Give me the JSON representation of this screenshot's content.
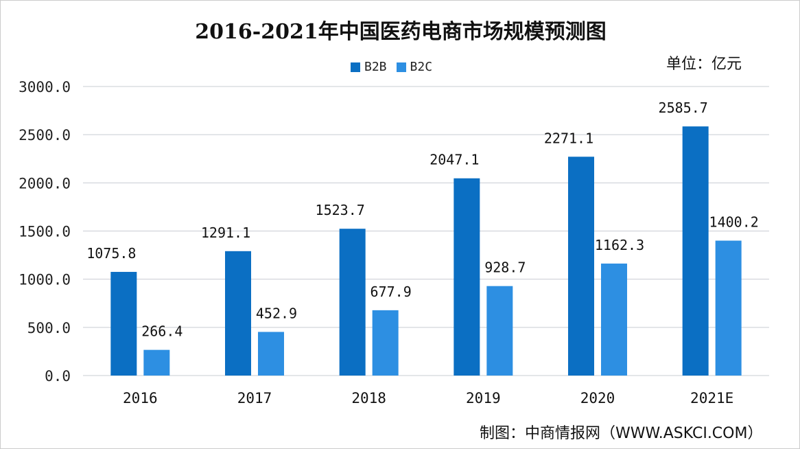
{
  "chart_data": {
    "type": "bar",
    "title": "2016-2021年中国医药电商市场规模预测图",
    "unit_label": "单位：亿元",
    "source": "制图：中商情报网（WWW.ASKCI.COM）",
    "categories": [
      "2016",
      "2017",
      "2018",
      "2019",
      "2020",
      "2021E"
    ],
    "series": [
      {
        "name": "B2B",
        "color": "#0b6fc3",
        "values": [
          1075.8,
          1291.1,
          1523.7,
          2047.1,
          2271.1,
          2585.7
        ],
        "labels": [
          "1075.8",
          "1291.1",
          "1523.7",
          "2047.1",
          "2271.1",
          "2585.7"
        ]
      },
      {
        "name": "B2C",
        "color": "#2d8fe2",
        "values": [
          266.4,
          452.9,
          677.9,
          928.7,
          1162.3,
          1400.2
        ],
        "labels": [
          "266.4",
          "452.9",
          "677.9",
          "928.7",
          "1162.3",
          "1400.2"
        ]
      }
    ],
    "ylim": [
      0,
      3000
    ],
    "yticks": [
      "0.0",
      "500.0",
      "1000.0",
      "1500.0",
      "2000.0",
      "2500.0",
      "3000.0"
    ],
    "grid": true,
    "legend": "top-center"
  }
}
